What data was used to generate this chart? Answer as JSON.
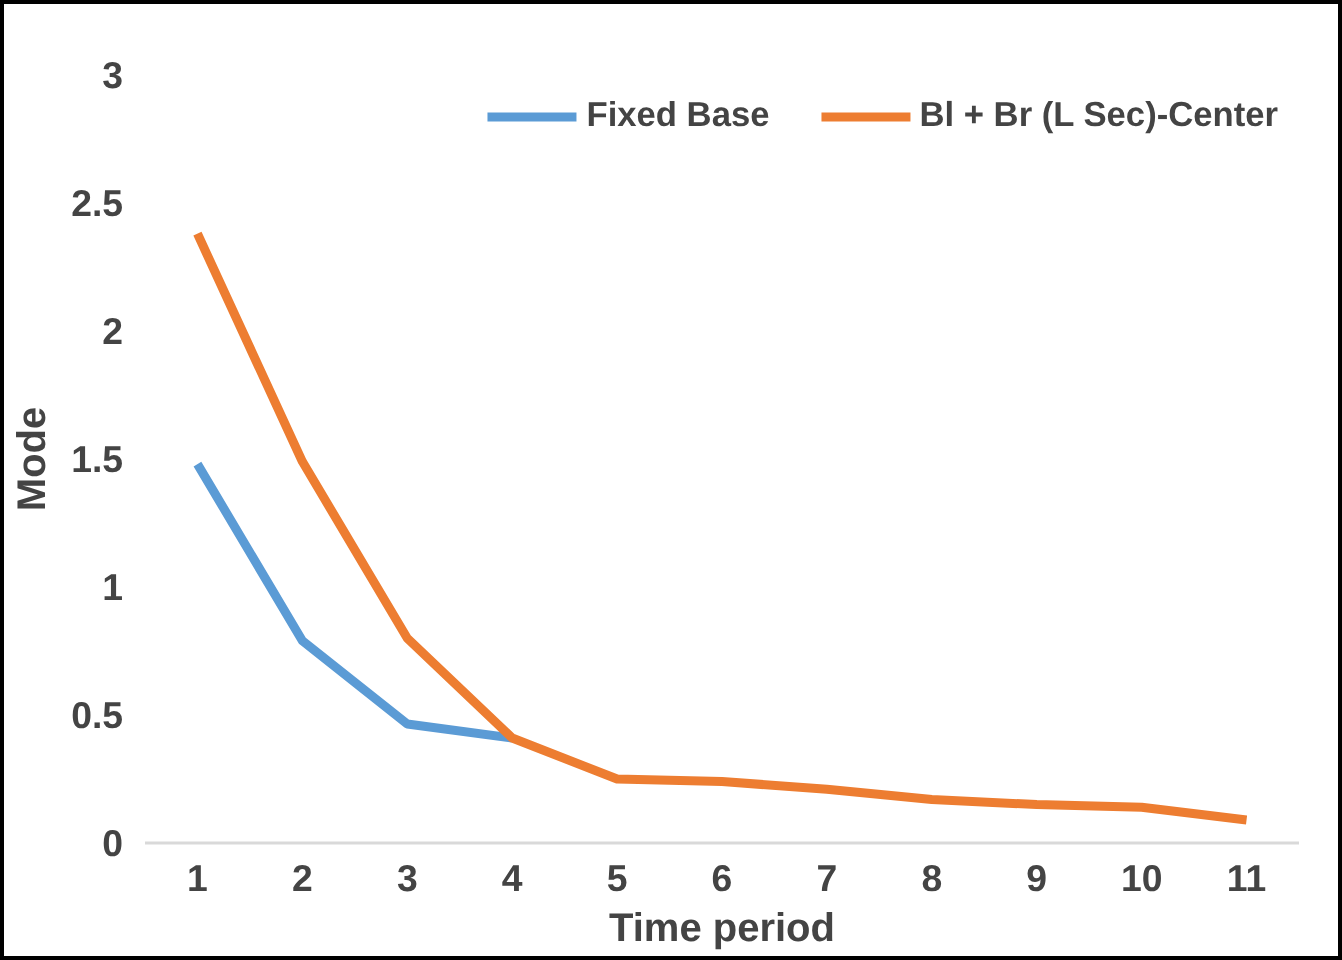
{
  "chart_data": {
    "type": "line",
    "xlabel": "Time period",
    "ylabel": "Mode",
    "categories": [
      "1",
      "2",
      "3",
      "4",
      "5",
      "6",
      "7",
      "8",
      "9",
      "10",
      "11"
    ],
    "series": [
      {
        "name": "Fixed Base",
        "color": "#5b9bd5",
        "values": [
          1.48,
          0.79,
          0.465,
          0.41,
          null,
          null,
          null,
          null,
          null,
          null,
          null
        ]
      },
      {
        "name": "Bl + Br (L Sec)-Center",
        "color": "#ed7d31",
        "values": [
          2.38,
          1.49,
          0.8,
          0.41,
          0.25,
          0.24,
          0.21,
          0.17,
          0.15,
          0.14,
          0.09
        ]
      }
    ],
    "ylim": [
      0,
      3
    ],
    "yticks": [
      0,
      0.5,
      1,
      1.5,
      2,
      2.5,
      3
    ],
    "grid": false,
    "legend": "top",
    "marker": "none",
    "line_style": "solid"
  }
}
